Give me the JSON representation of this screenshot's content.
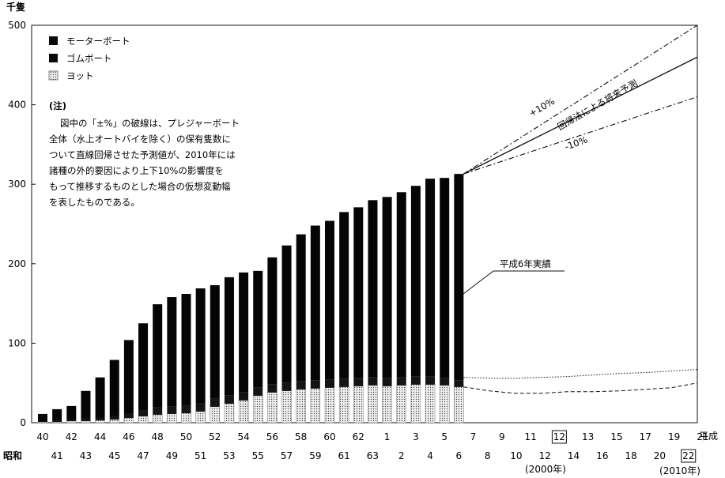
{
  "chart_data": {
    "type": "bar",
    "ylabel": "千隻",
    "ylim": [
      0,
      500
    ],
    "yticks": [
      0,
      100,
      200,
      300,
      400,
      500
    ],
    "era_showa_label": "昭和",
    "era_heisei_label": "平成",
    "legend": [
      {
        "name": "モーターボート",
        "color": "#0a0a0a"
      },
      {
        "name": "ゴムボート",
        "color": "#0a0a0a"
      },
      {
        "name": "ヨット",
        "color": "#e8e8e8"
      }
    ],
    "note_title": "(注)",
    "note_lines": [
      "図中の「±%」の破線は、プレジャーボート",
      "全体（水上オートバイを除く）の保有隻数に",
      "ついて直線回帰させた予測値が、2010年には",
      "諸種の外的要因により上下10%の影響度を",
      "もって推移するものとした場合の仮想変動幅",
      "を表したものである。"
    ],
    "categories": [
      "40",
      "41",
      "42",
      "43",
      "44",
      "45",
      "46",
      "47",
      "48",
      "49",
      "50",
      "51",
      "52",
      "53",
      "54",
      "55",
      "56",
      "57",
      "58",
      "59",
      "60",
      "61",
      "62",
      "63",
      "1",
      "2",
      "3",
      "4",
      "5",
      "6"
    ],
    "series": [
      {
        "name": "ヨット",
        "values": [
          1,
          1,
          2,
          2,
          3,
          4,
          6,
          8,
          10,
          11,
          12,
          14,
          20,
          24,
          28,
          34,
          38,
          40,
          42,
          43,
          44,
          45,
          46,
          47,
          46,
          47,
          48,
          48,
          47,
          45
        ]
      },
      {
        "name": "ゴムボート",
        "values": [
          1,
          2,
          2,
          3,
          3,
          4,
          5,
          7,
          9,
          9,
          9,
          10,
          10,
          10,
          10,
          10,
          10,
          10,
          10,
          10,
          10,
          10,
          10,
          10,
          10,
          10,
          10,
          10,
          9,
          8
        ]
      },
      {
        "name": "モーターボート",
        "values": [
          9,
          14,
          17,
          35,
          51,
          71,
          93,
          110,
          130,
          138,
          141,
          145,
          143,
          149,
          151,
          147,
          160,
          173,
          185,
          195,
          200,
          210,
          215,
          223,
          228,
          233,
          240,
          249,
          252,
          260
        ]
      }
    ],
    "bar_totals": [
      11,
      17,
      21,
      40,
      57,
      79,
      104,
      125,
      149,
      158,
      162,
      169,
      173,
      183,
      189,
      191,
      208,
      223,
      237,
      248,
      254,
      265,
      271,
      280,
      284,
      290,
      298,
      307,
      308,
      313
    ],
    "axis_bottom_row1": [
      "40",
      "42",
      "44",
      "46",
      "48",
      "50",
      "52",
      "54",
      "56",
      "58",
      "60",
      "62",
      "1",
      "3",
      "5",
      "7",
      "9",
      "11",
      "12",
      "13",
      "15",
      "17",
      "19",
      "21"
    ],
    "axis_bottom_row2": [
      "41",
      "43",
      "45",
      "47",
      "49",
      "51",
      "53",
      "55",
      "57",
      "59",
      "61",
      "63",
      "2",
      "4",
      "6",
      "8",
      "10",
      "12",
      "14",
      "16",
      "18",
      "20",
      "22"
    ],
    "boxed_years": [
      "12",
      "22"
    ],
    "year_notes": [
      "(2000年)",
      "(2010年)"
    ],
    "forecast": {
      "start_value": 313,
      "end_values": {
        "plus10": 500,
        "regression": 460,
        "minus10": 410
      },
      "plus10_label": "+10%",
      "regression_label": "回帰法による将来予測",
      "minus10_label": "-10%",
      "yacht_upper": [
        57,
        56,
        56,
        57,
        58,
        60,
        62,
        63,
        65,
        67
      ],
      "yacht_lower": [
        45,
        40,
        37,
        37,
        39,
        39,
        40,
        42,
        44,
        50
      ]
    },
    "actual_label": "平成6年実績"
  }
}
